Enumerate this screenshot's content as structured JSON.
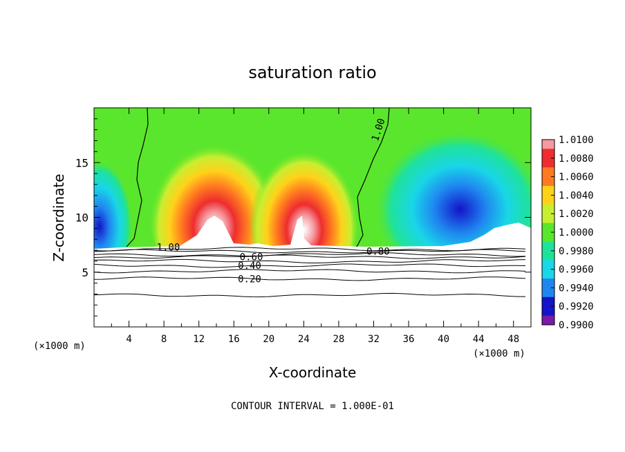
{
  "chart_data": {
    "type": "heatmap",
    "title": "saturation ratio",
    "xlabel": "X-coordinate",
    "ylabel": "Z-coordinate",
    "x_units": "(×1000 m)",
    "y_units": "(×1000 m)",
    "xlim": [
      0,
      50
    ],
    "ylim": [
      0,
      20
    ],
    "x_ticks": [
      "4",
      "8",
      "12",
      "16",
      "20",
      "24",
      "28",
      "32",
      "36",
      "40",
      "44",
      "48"
    ],
    "y_ticks": [
      "5",
      "10",
      "15"
    ],
    "footer": "CONTOUR INTERVAL = 1.000E-01",
    "colorbar": {
      "levels": [
        "1.0100",
        "1.0080",
        "1.0060",
        "1.0040",
        "1.0020",
        "1.0000",
        "0.9980",
        "0.9960",
        "0.9940",
        "0.9920",
        "0.9900"
      ],
      "colors": [
        "#f49aa0",
        "#ee2d2f",
        "#ff7a20",
        "#ffd21a",
        "#c8ee30",
        "#5ae62c",
        "#1fe29a",
        "#19d6e8",
        "#1f86f0",
        "#1414c8",
        "#7a1aa8"
      ]
    },
    "contour_labels": [
      {
        "text": "1.00",
        "x": 32.5,
        "y": 18.0
      },
      {
        "text": "1.00",
        "x": 8.5,
        "y": 7.3
      },
      {
        "text": "0.80",
        "x": 32.5,
        "y": 6.9
      },
      {
        "text": "0.60",
        "x": 18.0,
        "y": 6.4
      },
      {
        "text": "0.40",
        "x": 17.8,
        "y": 5.6
      },
      {
        "text": "0.20",
        "x": 17.8,
        "y": 4.4
      }
    ],
    "lower_contour_levels": [
      0.9,
      0.8,
      0.7,
      0.6,
      0.5,
      0.4,
      0.3,
      0.2,
      0.1
    ],
    "lower_contour_heights": [
      7.1,
      6.9,
      6.6,
      6.4,
      6.0,
      5.6,
      5.1,
      4.4,
      2.9
    ],
    "unsaturated_domes": [
      {
        "x_center": 13.5,
        "peak_z": 10.4
      },
      {
        "x_center": 23.5,
        "peak_z": 10.3
      },
      {
        "x_center": 47.5,
        "peak_z": 9.8
      }
    ]
  }
}
